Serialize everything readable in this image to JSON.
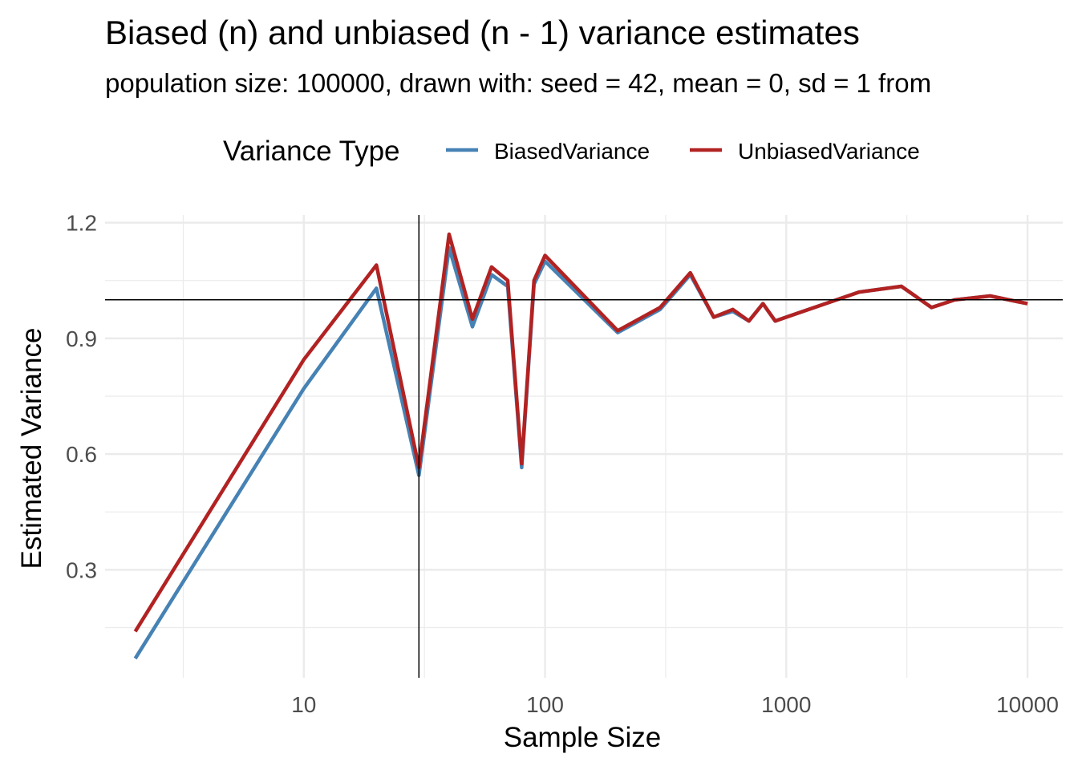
{
  "chart_data": {
    "type": "line",
    "title": "Biased (n) and unbiased (n - 1) variance estimates",
    "subtitle": "population size: 100000, drawn with: seed = 42, mean = 0, sd = 1 from",
    "xlabel": "Sample Size",
    "ylabel": "Estimated Variance",
    "x_scale": "log10",
    "xlim": [
      1.5,
      14000
    ],
    "ylim": [
      0.02,
      1.22
    ],
    "x_ticks": [
      10,
      100,
      1000,
      10000
    ],
    "x_tick_labels": [
      "10",
      "100",
      "1000",
      "10000"
    ],
    "y_ticks": [
      0.3,
      0.6,
      0.9,
      1.2
    ],
    "y_tick_labels": [
      "0.3",
      "0.6",
      "0.9",
      "1.2"
    ],
    "grid": true,
    "legend": {
      "title": "Variance Type",
      "position": "top"
    },
    "reference_lines": {
      "vertical_x": 30,
      "horizontal_y": 1.0
    },
    "series": [
      {
        "name": "BiasedVariance",
        "color": "#4682B4",
        "x": [
          2,
          10,
          20,
          30,
          40,
          50,
          60,
          70,
          80,
          90,
          100,
          200,
          300,
          400,
          500,
          600,
          700,
          800,
          900,
          1000,
          2000,
          3000,
          4000,
          5000,
          7000,
          10000
        ],
        "y": [
          0.07,
          0.77,
          1.03,
          0.545,
          1.135,
          0.93,
          1.065,
          1.035,
          0.565,
          1.04,
          1.1,
          0.915,
          0.975,
          1.065,
          0.955,
          0.97,
          0.945,
          0.99,
          0.945,
          0.955,
          1.02,
          1.035,
          0.98,
          1.0,
          1.01,
          0.99
        ]
      },
      {
        "name": "UnbiasedVariance",
        "color": "#B22222",
        "x": [
          2,
          10,
          20,
          30,
          40,
          50,
          60,
          70,
          80,
          90,
          100,
          200,
          300,
          400,
          500,
          600,
          700,
          800,
          900,
          1000,
          2000,
          3000,
          4000,
          5000,
          7000,
          10000
        ],
        "y": [
          0.14,
          0.845,
          1.09,
          0.565,
          1.17,
          0.95,
          1.085,
          1.05,
          0.575,
          1.05,
          1.115,
          0.92,
          0.98,
          1.07,
          0.955,
          0.975,
          0.945,
          0.99,
          0.945,
          0.955,
          1.02,
          1.035,
          0.98,
          1.0,
          1.01,
          0.99
        ]
      }
    ]
  }
}
